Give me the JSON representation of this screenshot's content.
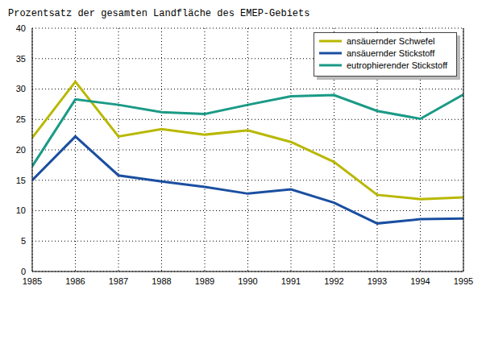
{
  "chart_data": {
    "type": "line",
    "title": "Prozentsatz der gesamten Landfläche des EMEP-Gebiets",
    "x": [
      1985,
      1986,
      1987,
      1988,
      1989,
      1990,
      1991,
      1992,
      1993,
      1994,
      1995
    ],
    "series": [
      {
        "name": "ansäuernder Schwefel",
        "color": "#b8b800",
        "values": [
          22,
          31.2,
          22.2,
          23.4,
          22.5,
          23.2,
          21.3,
          18,
          12.6,
          11.9,
          12.2
        ]
      },
      {
        "name": "ansäuernder Stickstoff",
        "color": "#1a4fa0",
        "values": [
          15,
          22.2,
          15.8,
          14.8,
          13.9,
          12.8,
          13.5,
          11.3,
          7.9,
          8.6,
          8.7
        ]
      },
      {
        "name": "eutrophierender Stickstoff",
        "color": "#1a9a86",
        "values": [
          17.3,
          28.3,
          27.4,
          26.2,
          25.9,
          27.4,
          28.8,
          29,
          26.4,
          25.1,
          29.1
        ]
      }
    ],
    "xlim": [
      1985,
      1995
    ],
    "xticks": [
      1985,
      1986,
      1987,
      1988,
      1989,
      1990,
      1991,
      1992,
      1993,
      1994,
      1995
    ],
    "ylim": [
      0,
      40
    ],
    "yticks": [
      0,
      5,
      10,
      15,
      20,
      25,
      30,
      35,
      40
    ],
    "grid": true,
    "legend": "upper right"
  }
}
